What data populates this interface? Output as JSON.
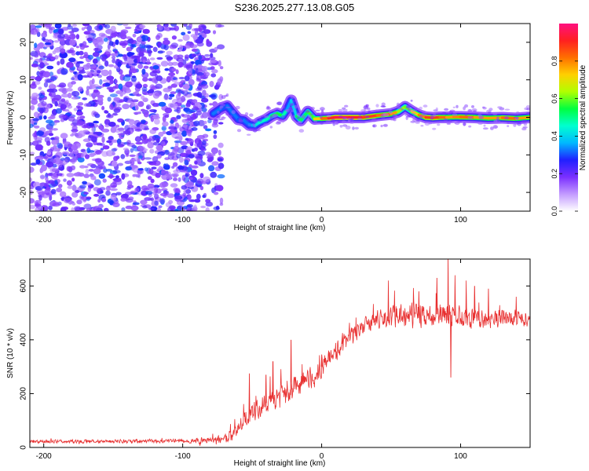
{
  "figure_title": "S236.2025.277.13.08.G05",
  "chart_data": [
    {
      "type": "heatmap",
      "title": "S236.2025.277.13.08.G05",
      "xlabel": "Height of straight line (km)",
      "ylabel": "Frequency (Hz)",
      "xlim": [
        -210,
        150
      ],
      "ylim": [
        -25,
        25
      ],
      "x_ticks": [
        -200,
        -100,
        0,
        100
      ],
      "x_tick_labels": [
        "-200",
        "-100",
        "0",
        "100"
      ],
      "y_ticks": [
        -20,
        -10,
        0,
        10,
        20
      ],
      "y_tick_labels": [
        "-20",
        "-10",
        "0",
        "10",
        "20"
      ],
      "noise_region_x": [
        -210,
        -72
      ],
      "colorbar": {
        "label": "Normalized spectral amplitude",
        "range": [
          0,
          1
        ],
        "ticks": [
          0.0,
          0.2,
          0.4,
          0.6,
          0.8
        ],
        "tick_labels": [
          "0.0",
          "0.2",
          "0.4",
          "0.6",
          "0.8"
        ],
        "colors": [
          "#ffffff",
          "#c39bff",
          "#7b2fff",
          "#2020ff",
          "#00b8ff",
          "#00ffd0",
          "#00ff40",
          "#b0ff00",
          "#ffd000",
          "#ff7000",
          "#ff2020",
          "#ff1080"
        ]
      },
      "ridge": {
        "x": [
          -78,
          -72,
          -68,
          -64,
          -60,
          -56,
          -52,
          -48,
          -45,
          -40,
          -36,
          -32,
          -28,
          -25,
          -22,
          -18,
          -15,
          -10,
          -5,
          0,
          5,
          10,
          20,
          30,
          40,
          50,
          55,
          60,
          65,
          70,
          75,
          80,
          85,
          90,
          95,
          100,
          110,
          120,
          130,
          140,
          150
        ],
        "y": [
          1,
          2.5,
          3,
          1.2,
          -0.5,
          -0.8,
          -2,
          -2.2,
          -1.4,
          -0.6,
          0.4,
          1,
          0.4,
          2,
          4.5,
          0.3,
          -0.8,
          1.5,
          -0.4,
          -0.3,
          -0.2,
          0,
          0,
          0,
          0.5,
          0.9,
          1.5,
          2.8,
          1.6,
          0.6,
          0,
          -0.1,
          0,
          0,
          0.1,
          0.1,
          0,
          -0.2,
          -0.1,
          -0.3,
          0
        ],
        "amplitude": [
          0.35,
          0.3,
          0.3,
          0.35,
          0.3,
          0.3,
          0.35,
          0.4,
          0.45,
          0.45,
          0.5,
          0.55,
          0.55,
          0.4,
          0.3,
          0.5,
          0.55,
          0.5,
          0.65,
          0.8,
          0.85,
          0.95,
          0.95,
          0.9,
          0.85,
          0.8,
          0.75,
          0.5,
          0.7,
          0.75,
          0.85,
          0.9,
          0.85,
          0.8,
          0.75,
          0.85,
          0.8,
          0.75,
          0.8,
          0.85,
          0.7
        ]
      }
    },
    {
      "type": "line",
      "xlabel": "Height of straight line (km)",
      "ylabel": "SNR (10 * v/v)",
      "xlim": [
        -210,
        150
      ],
      "ylim": [
        0,
        700
      ],
      "x_ticks": [
        -200,
        -100,
        0,
        100
      ],
      "x_tick_labels": [
        "-200",
        "-100",
        "0",
        "100"
      ],
      "y_ticks": [
        0,
        200,
        400,
        600
      ],
      "y_tick_labels": [
        "0",
        "200",
        "400",
        "600"
      ],
      "color": "#e83030",
      "trend": {
        "x": [
          -210,
          -160,
          -110,
          -80,
          -65,
          -60,
          -55,
          -50,
          -40,
          -30,
          -20,
          -10,
          0,
          10,
          20,
          30,
          40,
          50,
          60,
          70,
          80,
          90,
          100,
          110,
          120,
          130,
          140,
          150
        ],
        "y": [
          22,
          22,
          24,
          26,
          40,
          70,
          110,
          130,
          165,
          195,
          220,
          250,
          300,
          360,
          410,
          450,
          470,
          485,
          490,
          490,
          495,
          495,
          485,
          480,
          475,
          480,
          485,
          480
        ]
      },
      "noise_amplitude": {
        "x": [
          -210,
          -100,
          -70,
          -40,
          0,
          30,
          70,
          100,
          150
        ],
        "y": [
          8,
          8,
          20,
          50,
          45,
          35,
          60,
          45,
          35
        ]
      },
      "spikes": {
        "x": [
          -52,
          -40,
          -35,
          -22,
          0,
          15,
          48,
          70,
          83,
          91,
          93,
          96,
          104,
          110,
          120,
          140
        ],
        "y": [
          275,
          270,
          320,
          400,
          345,
          425,
          620,
          580,
          630,
          700,
          260,
          640,
          620,
          600,
          590,
          560
        ]
      }
    }
  ]
}
